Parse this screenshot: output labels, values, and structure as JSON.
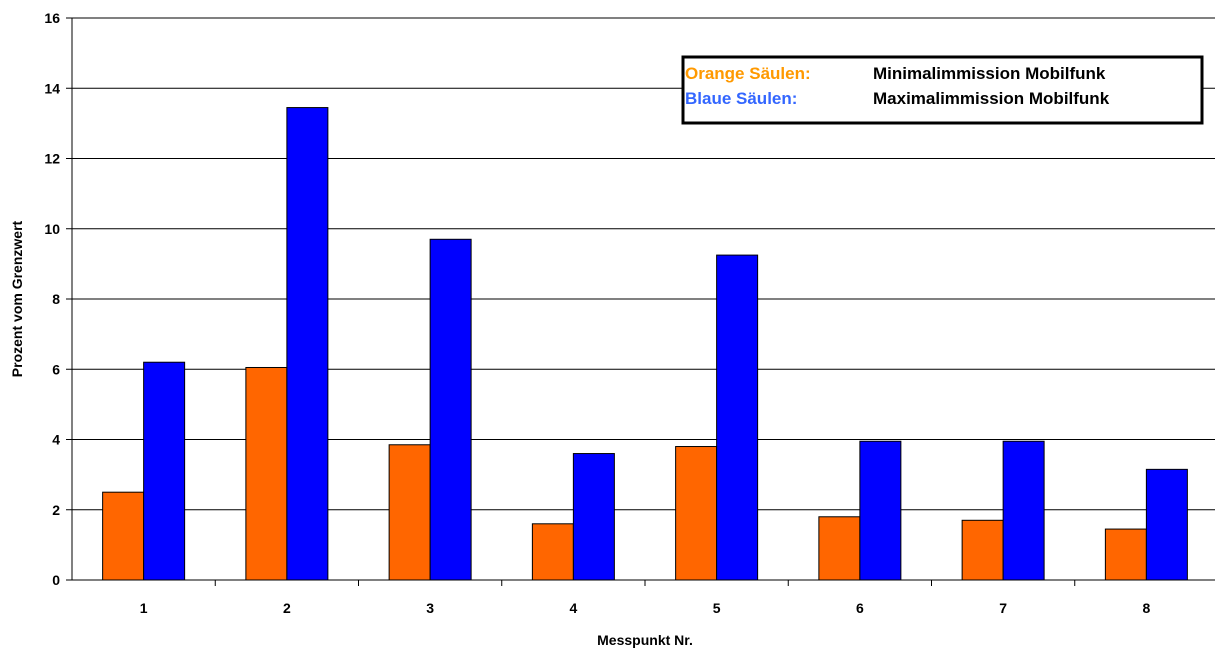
{
  "chart_data": {
    "type": "bar",
    "categories": [
      "1",
      "2",
      "3",
      "4",
      "5",
      "6",
      "7",
      "8"
    ],
    "series": [
      {
        "name": "Orange Säulen",
        "color": "#ff6600",
        "values": [
          2.5,
          6.05,
          3.85,
          1.6,
          3.8,
          1.8,
          1.7,
          1.45
        ]
      },
      {
        "name": "Blaue Säulen",
        "color": "#0000ff",
        "values": [
          6.2,
          13.45,
          9.7,
          3.6,
          9.25,
          3.95,
          3.95,
          3.15
        ]
      }
    ],
    "xlabel": "Messpunkt Nr.",
    "ylabel": "Prozent vom Grenzwert",
    "ylim": [
      0,
      16
    ],
    "yticks": [
      "0",
      "2",
      "4",
      "6",
      "8",
      "10",
      "12",
      "14",
      "16"
    ],
    "grid": true,
    "legend": {
      "position": "top-right",
      "rows": [
        {
          "key": "Orange Säulen:",
          "value": "Minimalimmission Mobilfunk",
          "color": "#ff9900"
        },
        {
          "key": "Blaue Säulen:",
          "value": "Maximalimmission Mobilfunk",
          "color": "#3366ff"
        }
      ]
    }
  }
}
